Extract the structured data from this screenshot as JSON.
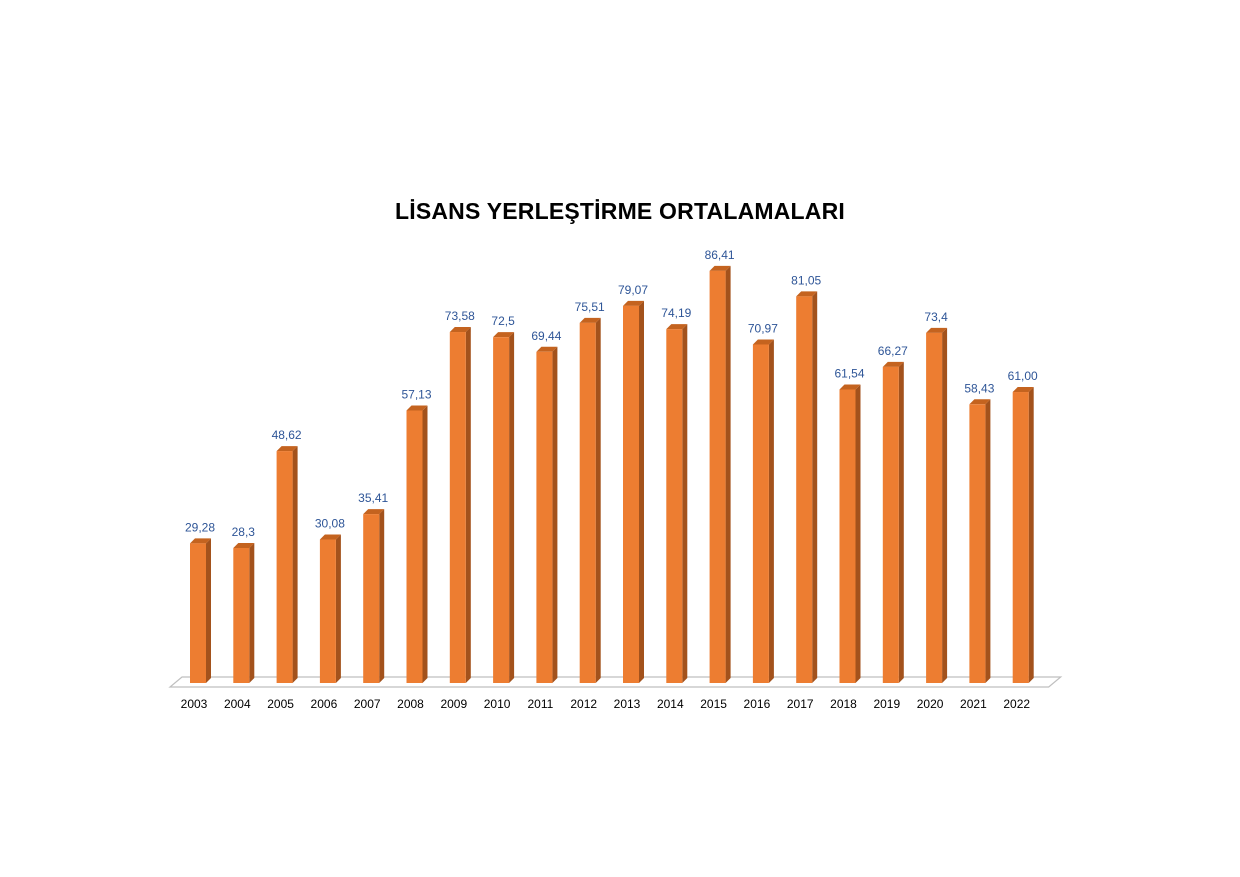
{
  "chart_data": {
    "type": "bar",
    "title": "LİSANS YERLEŞTİRME ORTALAMALARI",
    "categories": [
      "2003",
      "2004",
      "2005",
      "2006",
      "2007",
      "2008",
      "2009",
      "2010",
      "2011",
      "2012",
      "2013",
      "2014",
      "2015",
      "2016",
      "2017",
      "2018",
      "2019",
      "2020",
      "2021",
      "2022"
    ],
    "values": [
      29.28,
      28.3,
      48.62,
      30.08,
      35.41,
      57.13,
      73.58,
      72.5,
      69.44,
      75.51,
      79.07,
      74.19,
      86.41,
      70.97,
      81.05,
      61.54,
      66.27,
      73.4,
      58.43,
      61.0
    ],
    "data_labels": [
      "29,28",
      "28,3",
      "48,62",
      "30,08",
      "35,41",
      "57,13",
      "73,58",
      "72,5",
      "69,44",
      "75,51",
      "79,07",
      "74,19",
      "86,41",
      "70,97",
      "81,05",
      "61,54",
      "66,27",
      "73,4",
      "58,43",
      "61,00"
    ],
    "xlabel": "",
    "ylabel": "",
    "ylim": [
      0,
      90
    ],
    "grid": false,
    "legend": "none",
    "colors": {
      "bar_front": "#ed7d31",
      "bar_side": "#a3521c",
      "bar_top": "#c4631f",
      "label": "#2e5597",
      "floor": "#bfbfbf"
    }
  }
}
